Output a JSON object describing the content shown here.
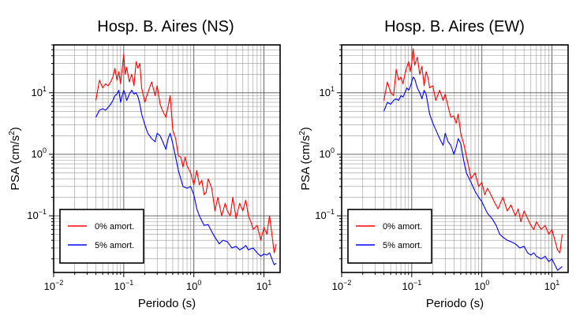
{
  "figure": {
    "panels": [
      {
        "id": "ns",
        "title": "Hosp. B. Aires (NS)",
        "xlabel": "Periodo (s)",
        "ylabel_main": "PSA (cm/s",
        "ylabel_sup": "2",
        "ylabel_end": ")",
        "x_ticks": [
          {
            "value": 0.01,
            "base": "10",
            "exp": "−2"
          },
          {
            "value": 0.1,
            "base": "10",
            "exp": "−1"
          },
          {
            "value": 1,
            "base": "10",
            "exp": "0"
          },
          {
            "value": 10,
            "base": "10",
            "exp": "1"
          }
        ],
        "y_ticks": [
          {
            "value": 0.1,
            "base": "10",
            "exp": "−1"
          },
          {
            "value": 1,
            "base": "10",
            "exp": "0"
          },
          {
            "value": 10,
            "base": "10",
            "exp": "1"
          }
        ],
        "legend": [
          {
            "label": "0% amort.",
            "color": "#ff0000"
          },
          {
            "label": "5% amort.",
            "color": "#0000ff"
          }
        ]
      },
      {
        "id": "ew",
        "title": "Hosp. B. Aires (EW)",
        "xlabel": "Periodo (s)",
        "ylabel_main": "PSA (cm/s",
        "ylabel_sup": "2",
        "ylabel_end": ")",
        "x_ticks": [
          {
            "value": 0.01,
            "base": "10",
            "exp": "−2"
          },
          {
            "value": 0.1,
            "base": "10",
            "exp": "−1"
          },
          {
            "value": 1,
            "base": "10",
            "exp": "0"
          },
          {
            "value": 10,
            "base": "10",
            "exp": "1"
          }
        ],
        "y_ticks": [
          {
            "value": 0.1,
            "base": "10",
            "exp": "−1"
          },
          {
            "value": 1,
            "base": "10",
            "exp": "0"
          },
          {
            "value": 10,
            "base": "10",
            "exp": "1"
          }
        ],
        "legend": [
          {
            "label": "0% amort.",
            "color": "#ff0000"
          },
          {
            "label": "5% amort.",
            "color": "#0000ff"
          }
        ]
      }
    ]
  },
  "chart_data": [
    {
      "type": "line",
      "title": "Hosp. B. Aires (NS)",
      "xlabel": "Periodo (s)",
      "ylabel": "PSA (cm/s2)",
      "xscale": "log",
      "yscale": "log",
      "xlim": [
        0.01,
        17
      ],
      "ylim": [
        0.012,
        60
      ],
      "grid": true,
      "legend_position": "bottom-left",
      "series": [
        {
          "name": "0% amort.",
          "color": "#ff0000",
          "x": [
            0.04,
            0.045,
            0.05,
            0.055,
            0.06,
            0.065,
            0.07,
            0.075,
            0.08,
            0.085,
            0.09,
            0.095,
            0.1,
            0.105,
            0.11,
            0.12,
            0.13,
            0.14,
            0.15,
            0.16,
            0.17,
            0.18,
            0.2,
            0.22,
            0.25,
            0.28,
            0.3,
            0.33,
            0.36,
            0.4,
            0.43,
            0.46,
            0.5,
            0.55,
            0.6,
            0.65,
            0.7,
            0.75,
            0.8,
            0.9,
            1.0,
            1.1,
            1.2,
            1.3,
            1.4,
            1.5,
            1.6,
            1.8,
            2.0,
            2.2,
            2.5,
            2.8,
            3.0,
            3.3,
            3.6,
            4.0,
            4.5,
            5.0,
            5.5,
            6.0,
            6.5,
            7.0,
            8.0,
            9.0,
            10.0,
            11.0,
            12.0,
            13.0,
            14.0,
            15.0
          ],
          "y": [
            7.5,
            16,
            12,
            14,
            13,
            15,
            18,
            25,
            16,
            22,
            14,
            25,
            42,
            20,
            26,
            15,
            20,
            13,
            32,
            25,
            30,
            12,
            7,
            10,
            15,
            9,
            13,
            6.5,
            5,
            4,
            6,
            9,
            2.5,
            1.8,
            0.95,
            0.9,
            0.62,
            0.9,
            0.65,
            0.5,
            0.32,
            0.55,
            0.32,
            0.38,
            0.22,
            0.24,
            0.4,
            0.28,
            0.12,
            0.2,
            0.1,
            0.16,
            0.12,
            0.1,
            0.2,
            0.09,
            0.16,
            0.12,
            0.18,
            0.1,
            0.08,
            0.06,
            0.07,
            0.04,
            0.065,
            0.05,
            0.1,
            0.05,
            0.025,
            0.035
          ]
        },
        {
          "name": "5% amort.",
          "color": "#0000ff",
          "x": [
            0.04,
            0.045,
            0.05,
            0.055,
            0.06,
            0.065,
            0.07,
            0.075,
            0.08,
            0.085,
            0.09,
            0.095,
            0.1,
            0.105,
            0.11,
            0.12,
            0.13,
            0.14,
            0.15,
            0.16,
            0.17,
            0.18,
            0.2,
            0.22,
            0.25,
            0.28,
            0.3,
            0.33,
            0.36,
            0.4,
            0.43,
            0.46,
            0.5,
            0.55,
            0.6,
            0.65,
            0.7,
            0.8,
            0.9,
            1.0,
            1.1,
            1.2,
            1.4,
            1.6,
            1.8,
            2.0,
            2.3,
            2.6,
            3.0,
            3.5,
            4.0,
            4.5,
            5.0,
            5.5,
            6.0,
            7.0,
            8.0,
            9.0,
            10.0,
            11.0,
            12.0,
            13.0,
            14.0,
            15.0
          ],
          "y": [
            4.0,
            5.2,
            5.5,
            5.2,
            5.8,
            6.5,
            7.5,
            9.0,
            9.5,
            11.0,
            7.0,
            9.0,
            11.0,
            9.5,
            7.5,
            9.5,
            11.0,
            9.5,
            10.0,
            8.5,
            6.5,
            4.5,
            3.0,
            2.2,
            1.8,
            1.6,
            2.2,
            2.0,
            1.6,
            1.2,
            1.8,
            2.2,
            1.5,
            0.9,
            0.55,
            0.4,
            0.3,
            0.28,
            0.3,
            0.22,
            0.13,
            0.1,
            0.07,
            0.072,
            0.055,
            0.045,
            0.035,
            0.04,
            0.038,
            0.03,
            0.032,
            0.028,
            0.03,
            0.033,
            0.028,
            0.03,
            0.025,
            0.022,
            0.024,
            0.023,
            0.025,
            0.02,
            0.016,
            0.017
          ]
        }
      ]
    },
    {
      "type": "line",
      "title": "Hosp. B. Aires (EW)",
      "xlabel": "Periodo (s)",
      "ylabel": "PSA (cm/s2)",
      "xscale": "log",
      "yscale": "log",
      "xlim": [
        0.01,
        17
      ],
      "ylim": [
        0.012,
        60
      ],
      "grid": true,
      "legend_position": "bottom-left",
      "series": [
        {
          "name": "0% amort.",
          "color": "#ff0000",
          "x": [
            0.04,
            0.045,
            0.05,
            0.055,
            0.06,
            0.065,
            0.07,
            0.075,
            0.08,
            0.085,
            0.09,
            0.095,
            0.1,
            0.105,
            0.11,
            0.12,
            0.13,
            0.14,
            0.15,
            0.16,
            0.17,
            0.18,
            0.2,
            0.22,
            0.25,
            0.28,
            0.3,
            0.33,
            0.36,
            0.4,
            0.43,
            0.46,
            0.5,
            0.55,
            0.6,
            0.65,
            0.7,
            0.8,
            0.9,
            1.0,
            1.1,
            1.2,
            1.3,
            1.5,
            1.7,
            2.0,
            2.3,
            2.6,
            3.0,
            3.3,
            3.6,
            4.0,
            4.5,
            5.0,
            5.5,
            6.0,
            7.0,
            8.0,
            9.0,
            10.0,
            11.0,
            12.0,
            13.0,
            14.0
          ],
          "y": [
            7.5,
            15,
            10,
            9,
            24,
            16,
            18,
            14,
            20,
            26,
            32,
            22,
            30,
            52,
            28,
            38,
            20,
            27,
            13,
            22,
            18,
            12,
            13,
            7.5,
            11,
            7.5,
            9.5,
            6,
            4,
            4.2,
            3.2,
            4.5,
            2.2,
            1.5,
            0.95,
            0.62,
            0.4,
            0.5,
            0.3,
            0.35,
            0.22,
            0.28,
            0.24,
            0.17,
            0.13,
            0.2,
            0.12,
            0.15,
            0.1,
            0.13,
            0.08,
            0.12,
            0.09,
            0.07,
            0.06,
            0.08,
            0.06,
            0.07,
            0.05,
            0.06,
            0.04,
            0.028,
            0.025,
            0.05
          ]
        },
        {
          "name": "5% amort.",
          "color": "#0000ff",
          "x": [
            0.04,
            0.045,
            0.05,
            0.055,
            0.06,
            0.065,
            0.07,
            0.075,
            0.08,
            0.085,
            0.09,
            0.095,
            0.1,
            0.105,
            0.11,
            0.12,
            0.13,
            0.14,
            0.15,
            0.16,
            0.17,
            0.18,
            0.2,
            0.22,
            0.25,
            0.28,
            0.3,
            0.33,
            0.36,
            0.4,
            0.43,
            0.46,
            0.5,
            0.55,
            0.6,
            0.7,
            0.8,
            0.9,
            1.0,
            1.2,
            1.4,
            1.6,
            1.8,
            2.0,
            2.3,
            2.6,
            3.0,
            3.5,
            4.0,
            4.5,
            5.0,
            5.5,
            6.0,
            7.0,
            8.0,
            9.0,
            10.0,
            11.0,
            12.0,
            13.0,
            14.0
          ],
          "y": [
            5.0,
            7.0,
            6.5,
            7.5,
            8.0,
            7.5,
            9.0,
            8.5,
            10.0,
            12.0,
            11.0,
            12.5,
            15.0,
            18.0,
            17.0,
            12.0,
            10.0,
            8.0,
            11.0,
            9.5,
            6.5,
            4.5,
            3.2,
            2.5,
            1.8,
            1.4,
            2.2,
            1.6,
            1.4,
            1.0,
            1.3,
            1.8,
            1.5,
            0.8,
            0.5,
            0.35,
            0.25,
            0.2,
            0.17,
            0.11,
            0.09,
            0.07,
            0.05,
            0.045,
            0.04,
            0.038,
            0.035,
            0.03,
            0.032,
            0.025,
            0.023,
            0.025,
            0.022,
            0.02,
            0.022,
            0.018,
            0.02,
            0.016,
            0.013,
            0.014,
            0.015
          ]
        }
      ]
    }
  ]
}
